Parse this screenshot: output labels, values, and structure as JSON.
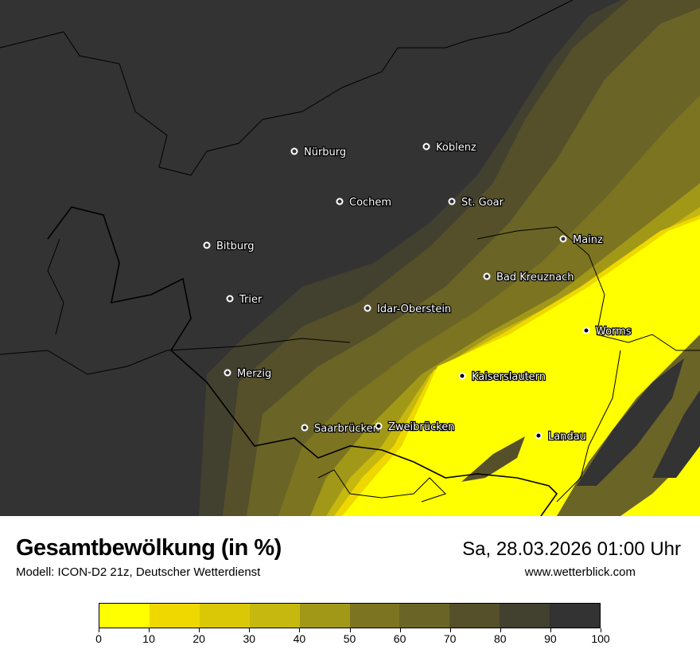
{
  "title": "Gesamtbewölkung (in %)",
  "subtitle": "Modell: ICON-D2 21z, Deutscher Wetterdienst",
  "datetime": "Sa, 28.03.2026 01:00 Uhr",
  "website": "www.wetterblick.com",
  "legend": {
    "ticks": [
      "0",
      "10",
      "20",
      "30",
      "40",
      "50",
      "60",
      "70",
      "80",
      "90",
      "100"
    ],
    "colors": [
      "#ffff00",
      "#eed800",
      "#dac806",
      "#c6b80e",
      "#a29818",
      "#7c7420",
      "#6a6526",
      "#55502a",
      "#42402e",
      "#333333"
    ]
  },
  "cities": [
    {
      "name": "Nürburg"
    },
    {
      "name": "Koblenz"
    },
    {
      "name": "Cochem"
    },
    {
      "name": "St. Goar"
    },
    {
      "name": "Bitburg"
    },
    {
      "name": "Mainz"
    },
    {
      "name": "Bad Kreuznach"
    },
    {
      "name": "Trier"
    },
    {
      "name": "Idar-Oberstein"
    },
    {
      "name": "Worms"
    },
    {
      "name": "Merzig"
    },
    {
      "name": "Kaiserslautern"
    },
    {
      "name": "Saarbrücken"
    },
    {
      "name": "Zweibrücken"
    },
    {
      "name": "Landau"
    }
  ]
}
